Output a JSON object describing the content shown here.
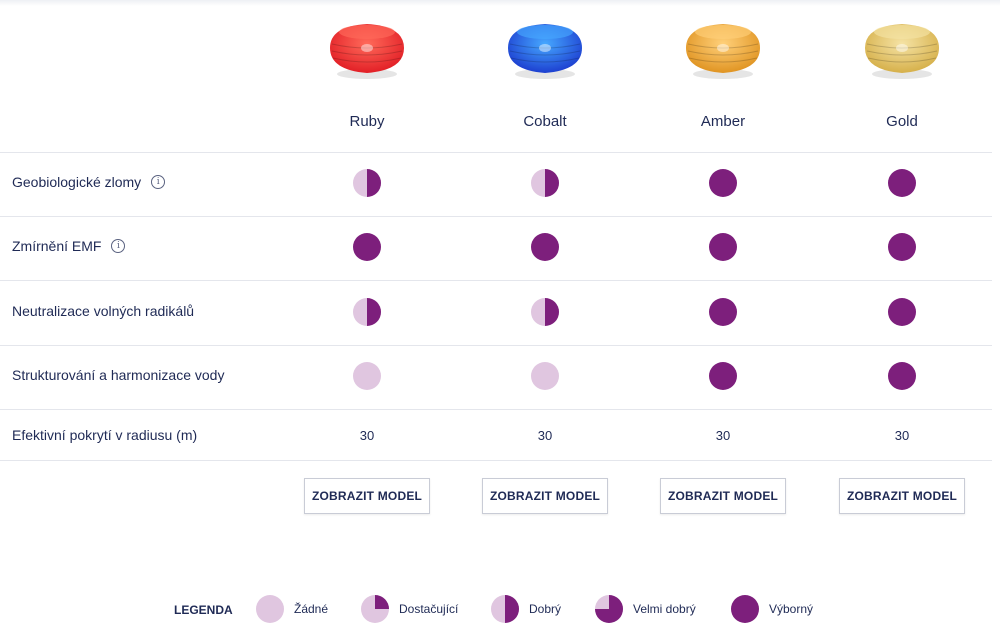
{
  "colors": {
    "full": "#7d1f7c",
    "empty": "#e0c6e0",
    "text": "#1f2a55"
  },
  "products": [
    {
      "name": "Ruby",
      "color": "#e21f26",
      "highlight": "#ff6a5a"
    },
    {
      "name": "Cobalt",
      "color": "#1d3fd0",
      "highlight": "#46a8ff"
    },
    {
      "name": "Amber",
      "color": "#e09422",
      "highlight": "#ffd07a"
    },
    {
      "name": "Gold",
      "color": "#d6b04a",
      "highlight": "#f5e3a5"
    }
  ],
  "rows": [
    {
      "label": "Geobiologické zlomy",
      "info": true,
      "ratings": [
        2,
        2,
        4,
        4
      ]
    },
    {
      "label": "Zmírnění EMF",
      "info": true,
      "ratings": [
        4,
        4,
        4,
        4
      ]
    },
    {
      "label": "Neutralizace volných radikálů",
      "info": false,
      "ratings": [
        2,
        2,
        4,
        4
      ]
    },
    {
      "label": "Strukturování a harmonizace vody",
      "info": false,
      "ratings": [
        0,
        0,
        4,
        4
      ]
    }
  ],
  "coverage": {
    "label": "Efektivní pokrytí v radiusu (m)",
    "values": [
      "30",
      "30",
      "30",
      "30"
    ]
  },
  "button_label": "ZOBRAZIT MODEL",
  "legend": {
    "title": "LEGENDA",
    "items": [
      {
        "label": "Žádné",
        "level": 0
      },
      {
        "label": "Dostačující",
        "level": 1
      },
      {
        "label": "Dobrý",
        "level": 2
      },
      {
        "label": "Velmi dobrý",
        "level": 3
      },
      {
        "label": "Výborný",
        "level": 4
      }
    ]
  }
}
